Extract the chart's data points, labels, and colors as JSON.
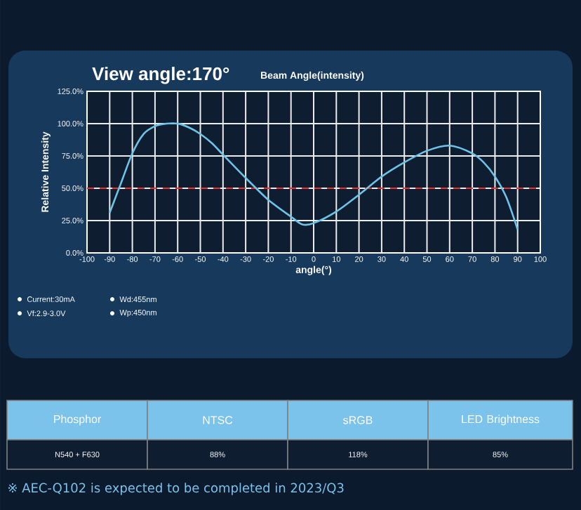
{
  "chart_data": {
    "type": "line",
    "title": "View angle:170°",
    "subtitle": "Beam Angle(intensity)",
    "xlabel": "angle(°)",
    "ylabel": "Relative Intensity",
    "x": [
      -90,
      -85,
      -80,
      -75,
      -70,
      -65,
      -60,
      -55,
      -50,
      -45,
      -40,
      -30,
      -20,
      -10,
      -5,
      0,
      10,
      20,
      30,
      40,
      50,
      60,
      70,
      75,
      80,
      85,
      90
    ],
    "series": [
      {
        "color": "#6ec3e8",
        "values": [
          31,
          54,
          77,
          92,
          98,
          100,
          100,
          97,
          92,
          85,
          76,
          58,
          41,
          28,
          22,
          23,
          32,
          45,
          59,
          70,
          79,
          83,
          77,
          70,
          59,
          43,
          18
        ]
      }
    ],
    "xlim": [
      -100,
      100
    ],
    "ylim": [
      0,
      125
    ],
    "xticks": [
      -100,
      -90,
      -80,
      -70,
      -60,
      -50,
      -40,
      -30,
      -20,
      -10,
      0,
      10,
      20,
      30,
      40,
      50,
      60,
      70,
      80,
      90,
      100
    ],
    "yticks": [
      {
        "value": 0,
        "label": "0.0%"
      },
      {
        "value": 25,
        "label": "25.0%"
      },
      {
        "value": 50,
        "label": "50.0%"
      },
      {
        "value": 75,
        "label": "75.0%"
      },
      {
        "value": 100,
        "label": "100.0%"
      },
      {
        "value": 125,
        "label": "125.0%"
      }
    ],
    "grid": true,
    "line_style": "solid",
    "ref_lines": [
      {
        "axis": "y",
        "value": 50,
        "color": "#e8332a",
        "line_style": "dashed"
      }
    ],
    "annotations": [
      "Current:30mA",
      "Wd:455nm",
      "Vf:2.9-3.0V",
      "Wp:450nm",
      "Phosphor",
      "NTSC",
      "sRGB",
      "LED Brightness",
      "N540 + F630",
      "88%",
      "118%",
      "85%",
      "※ AEC-Q102 is expected to be completed in 2023/Q3"
    ]
  }
}
